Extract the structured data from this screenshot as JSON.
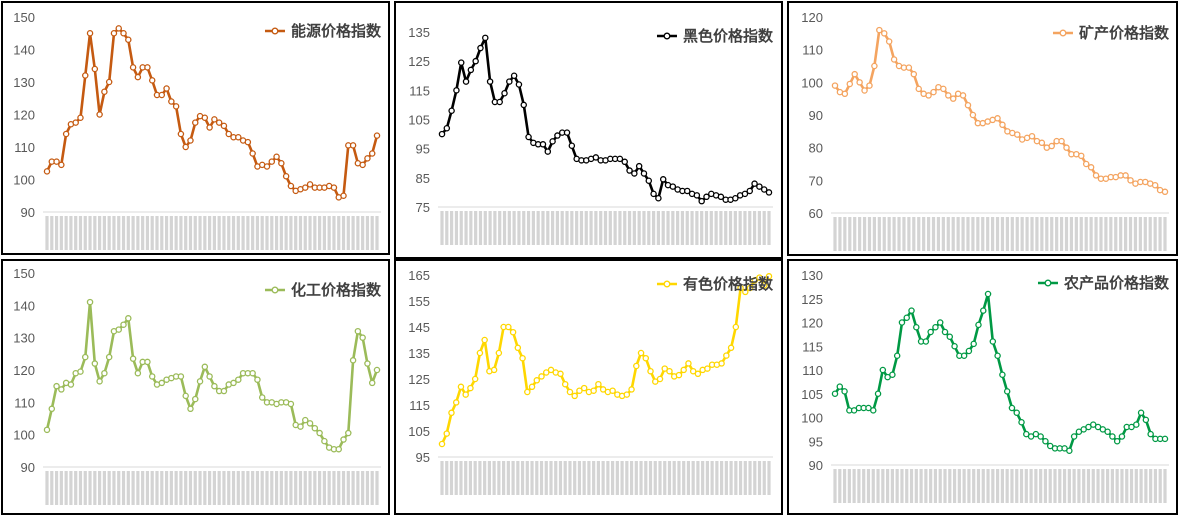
{
  "chart_data": [
    {
      "type": "line",
      "legend": "能源价格指数",
      "color": "#C55A11",
      "ylim": [
        90,
        150
      ],
      "yticks": [
        90,
        100,
        110,
        120,
        130,
        140,
        150
      ],
      "legend_position": "top-right",
      "values": [
        102.5,
        105.5,
        105.5,
        104.5,
        114,
        117,
        117.5,
        119,
        132,
        145,
        134,
        120,
        127,
        130,
        145,
        146.5,
        145,
        143,
        134.5,
        131.5,
        134.5,
        134.5,
        130.5,
        126,
        126,
        128,
        124,
        122.5,
        114,
        110,
        112,
        117.5,
        119.5,
        119,
        116,
        118.5,
        117.5,
        116.5,
        114,
        113,
        113,
        112,
        111.5,
        108,
        104,
        104.5,
        104,
        105.5,
        107,
        105,
        101,
        98,
        96.5,
        97,
        97.5,
        98.5,
        97.5,
        97.5,
        97.5,
        98,
        97.5,
        94.5,
        95,
        110.5,
        110.5,
        105,
        104.5,
        106.5,
        108,
        113.5
      ]
    },
    {
      "type": "line",
      "legend": "黑色价格指数",
      "color": "#000000",
      "ylim": [
        75,
        135
      ],
      "yticks": [
        75,
        85,
        95,
        105,
        115,
        125,
        135
      ],
      "legend_position": "top-right",
      "values": [
        100,
        102,
        108,
        115,
        124.5,
        118,
        122,
        125,
        129.5,
        133,
        118,
        111,
        111,
        114,
        118,
        120,
        117,
        110,
        99,
        97,
        96.5,
        96.5,
        94,
        97.5,
        99.5,
        100.5,
        100.5,
        96,
        91.5,
        91,
        91,
        91.5,
        92,
        91,
        91,
        91.5,
        91.5,
        91.5,
        90.5,
        87.5,
        86.5,
        89,
        86.5,
        84,
        79.5,
        78,
        84.5,
        82.5,
        82,
        81,
        80.5,
        80.5,
        79.5,
        79,
        77,
        78.5,
        79.5,
        79,
        78.5,
        77.5,
        77.5,
        78,
        79,
        79.5,
        80.5,
        83,
        82,
        81,
        80
      ]
    },
    {
      "type": "line",
      "legend": "矿产价格指数",
      "color": "#F4A460",
      "ylim": [
        60,
        120
      ],
      "yticks": [
        60,
        70,
        80,
        90,
        100,
        110,
        120
      ],
      "legend_position": "top-right",
      "values": [
        99,
        97,
        96.5,
        99.5,
        102.5,
        100,
        97.5,
        99,
        105,
        116,
        115,
        112.5,
        107,
        105,
        104.5,
        104.5,
        102.5,
        98,
        96.5,
        96,
        97,
        98.5,
        98,
        96,
        95,
        96.5,
        96,
        93,
        90,
        87.5,
        87.5,
        88,
        88.5,
        89,
        87,
        85,
        84.5,
        84,
        82.5,
        83,
        83.5,
        82,
        81.5,
        80,
        80.5,
        82,
        82,
        80,
        78,
        78,
        77.5,
        75,
        74,
        71.5,
        70.5,
        70.5,
        71,
        71,
        71.5,
        71.5,
        70,
        69,
        69.5,
        69.5,
        69,
        68.5,
        67,
        66.5
      ]
    },
    {
      "type": "line",
      "legend": "化工价格指数",
      "color": "#9BBB59",
      "ylim": [
        90,
        150
      ],
      "yticks": [
        90,
        100,
        110,
        120,
        130,
        140,
        150
      ],
      "legend_position": "top-right",
      "values": [
        101.5,
        108,
        115,
        114,
        116,
        115.5,
        119,
        119.5,
        124,
        141,
        122,
        116.5,
        119,
        124,
        132,
        132.5,
        134,
        136,
        123.5,
        119,
        122.5,
        122.5,
        118,
        115.5,
        116,
        117,
        117.5,
        118,
        118,
        112,
        108,
        111,
        116.5,
        121,
        118,
        115,
        113.5,
        113.5,
        115.5,
        116,
        117,
        119,
        119,
        119,
        117,
        111.5,
        110,
        110,
        109.5,
        110,
        110,
        109.5,
        103,
        102.5,
        104.5,
        103.5,
        102,
        100.5,
        98,
        96,
        95.5,
        95.5,
        98.5,
        100.5,
        123,
        132,
        130,
        122,
        116,
        120
      ]
    },
    {
      "type": "line",
      "legend": "有色价格指数",
      "color": "#FFD700",
      "ylim": [
        95,
        165
      ],
      "yticks": [
        95,
        105,
        115,
        125,
        135,
        145,
        155,
        165
      ],
      "legend_position": "top-right",
      "values": [
        100,
        104,
        112,
        116,
        122,
        119,
        121.5,
        125,
        135,
        140,
        128,
        128.5,
        135,
        145,
        145,
        143,
        137,
        133,
        120,
        122,
        124.5,
        126,
        127.5,
        128.5,
        127.5,
        127,
        123,
        120,
        118.5,
        120.5,
        121.5,
        120,
        120.5,
        123,
        121,
        120,
        120.5,
        119,
        118.5,
        119,
        121,
        130,
        135,
        133,
        128,
        124,
        125,
        129,
        128,
        126,
        126.5,
        128.5,
        131,
        128,
        127,
        128.5,
        129,
        130.5,
        130.5,
        131,
        134,
        137,
        145,
        160,
        158.5,
        160,
        163,
        164,
        161,
        164.5
      ]
    },
    {
      "type": "line",
      "legend": "农产品价格指数",
      "color": "#009944",
      "ylim": [
        90,
        130
      ],
      "yticks": [
        90,
        95,
        100,
        105,
        110,
        115,
        120,
        125,
        130
      ],
      "legend_position": "top-right",
      "values": [
        105,
        106.5,
        105.5,
        101.5,
        101.5,
        102,
        102,
        102,
        101.5,
        105,
        110,
        108.5,
        109,
        113,
        120,
        121,
        122.5,
        119,
        116,
        116,
        118,
        119,
        120,
        118,
        117,
        115,
        113,
        113,
        114,
        115.5,
        119.5,
        122.5,
        126,
        116,
        113,
        109,
        105.5,
        102,
        101,
        99,
        96.5,
        96,
        96.5,
        96,
        95,
        94,
        93.5,
        93.5,
        93.5,
        93,
        96,
        97,
        97.5,
        98,
        98.5,
        98,
        97.5,
        97,
        96,
        95,
        96,
        98,
        98,
        98.5,
        101,
        99.5,
        96.5,
        95.5,
        95.5,
        95.5
      ]
    }
  ]
}
